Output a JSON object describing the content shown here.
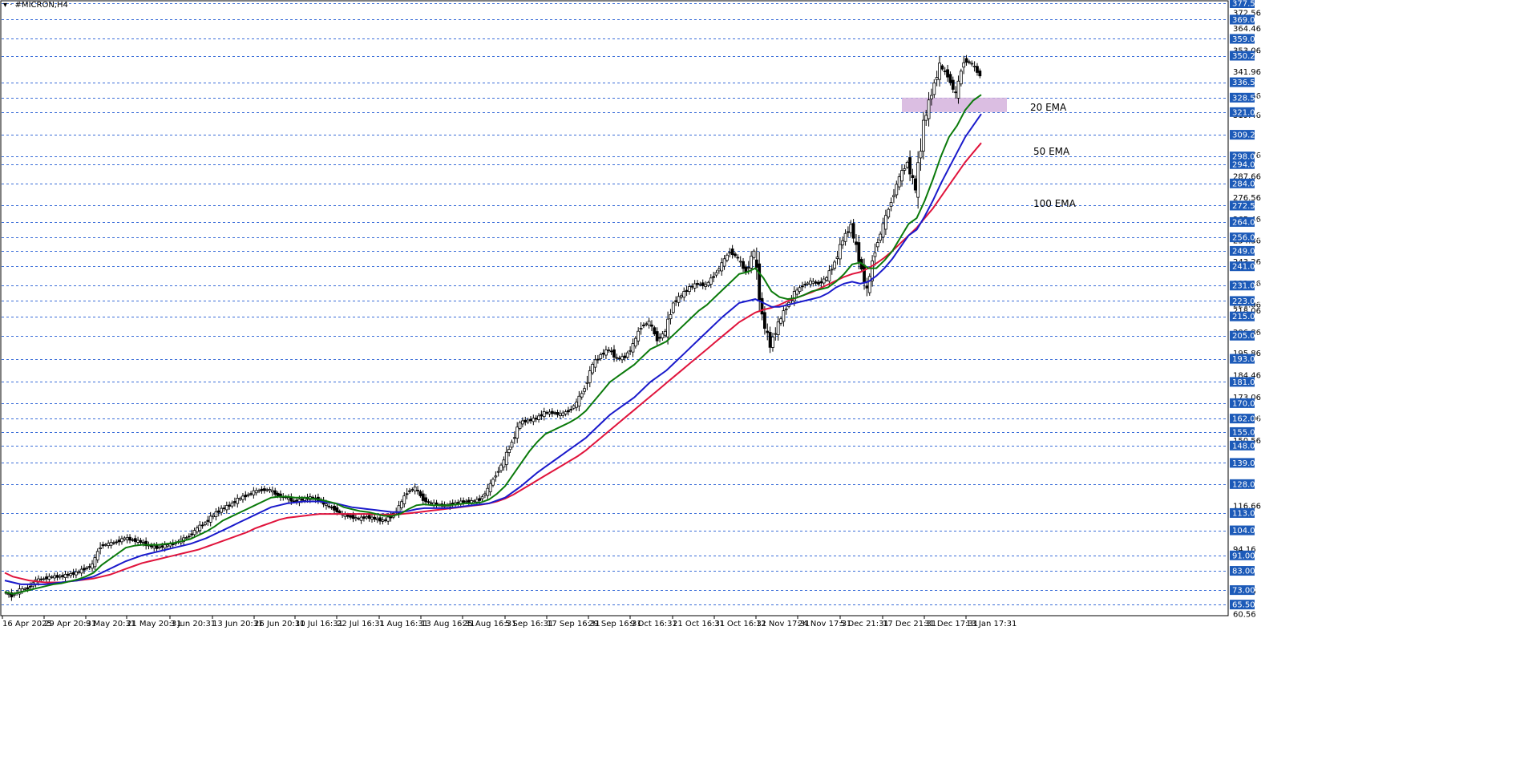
{
  "window": {
    "title": "▾ · #MICRON,H4"
  },
  "colors": {
    "ema20": "#0b7a0b",
    "ema50": "#1a1acb",
    "ema100": "#e0143c",
    "tag_bg": "#1c5ab8",
    "grid": "#3a6dd8",
    "zone": "#d5b3dd",
    "candle": "#000000"
  },
  "chart_data": {
    "type": "line",
    "symbol": "#MICRON",
    "timeframe": "H4",
    "ylim": [
      60.56,
      377.5
    ],
    "x_ticks": [
      "16 Apr 2025",
      "29 Apr 20:31",
      "9 May 20:31",
      "21 May 20:31",
      "3 Jun 20:31",
      "13 Jun 20:31",
      "26 Jun 20:31",
      "10 Jul 16:31",
      "22 Jul 16:31",
      "1 Aug 16:31",
      "13 Aug 16:31",
      "25 Aug 16:31",
      "5 Sep 16:31",
      "17 Sep 16:31",
      "29 Sep 16:31",
      "9 Oct 16:31",
      "21 Oct 16:31",
      "31 Oct 16:31",
      "12 Nov 17:31",
      "24 Nov 17:31",
      "5 Dec 21:31",
      "17 Dec 21:31",
      "31 Dec 17:31",
      "13 Jan 17:31"
    ],
    "y_ticks": [
      "372.56",
      "364.46",
      "353.06",
      "341.96",
      "329.56",
      "319.46",
      "298.76",
      "287.66",
      "276.56",
      "265.46",
      "254.36",
      "243.26",
      "232.16",
      "221.06",
      "218.06",
      "206.86",
      "195.86",
      "184.46",
      "173.06",
      "161.96",
      "150.56",
      "116.66",
      "94.16",
      "72.46",
      "60.56"
    ],
    "level_tags": [
      "377.50",
      "369.00",
      "359.00",
      "350.25",
      "336.50",
      "328.50",
      "321.00",
      "309.25",
      "298.00",
      "294.00",
      "284.00",
      "272.50",
      "264.00",
      "256.00",
      "249.00",
      "241.00",
      "231.00",
      "223.00",
      "215.00",
      "205.00",
      "193.00",
      "181.00",
      "170.00",
      "162.00",
      "155.00",
      "148.00",
      "139.00",
      "128.00",
      "113.00",
      "104.00",
      "91.00",
      "83.00",
      "73.00",
      "65.50"
    ],
    "levels": [
      377.5,
      369,
      359,
      350.25,
      336.5,
      328.5,
      321,
      309.25,
      298,
      294,
      284,
      272.5,
      264,
      256,
      249,
      241,
      231,
      223,
      215,
      205,
      193,
      181,
      170,
      162,
      155,
      148,
      139,
      128,
      113,
      104,
      91,
      83,
      73,
      65.5
    ],
    "zone": {
      "from": 321,
      "to": 328.5
    },
    "close": [
      72,
      70,
      73,
      74,
      78,
      79,
      80,
      80,
      81,
      82,
      84,
      86,
      96,
      97,
      98,
      100,
      99,
      98,
      96,
      95,
      96,
      97,
      99,
      101,
      105,
      108,
      112,
      115,
      117,
      120,
      122,
      124,
      125,
      125,
      122,
      121,
      119,
      120,
      121,
      120,
      117,
      115,
      112,
      111,
      110,
      111,
      110,
      109,
      111,
      116,
      124,
      126,
      120,
      118,
      117,
      117,
      118,
      119,
      119,
      120,
      125,
      133,
      140,
      150,
      160,
      161,
      162,
      165,
      165,
      164,
      166,
      170,
      178,
      190,
      195,
      198,
      193,
      194,
      200,
      210,
      212,
      203,
      207,
      222,
      226,
      230,
      232,
      231,
      236,
      242,
      249,
      245,
      238,
      249,
      215,
      200,
      211,
      220,
      227,
      231,
      233,
      232,
      235,
      243,
      255,
      262,
      245,
      228,
      250,
      262,
      275,
      287,
      295,
      281,
      315,
      331,
      345,
      340,
      330,
      348,
      346,
      340
    ],
    "ema20": [
      72,
      71,
      72,
      73,
      74,
      75,
      76,
      76.5,
      77.5,
      78.5,
      80,
      82,
      86,
      89,
      92,
      95,
      96,
      96.5,
      96.5,
      96.5,
      97,
      97.5,
      98.5,
      99.5,
      101.5,
      103.5,
      106,
      109,
      111,
      113,
      115,
      117,
      119,
      121,
      121.5,
      121.5,
      121,
      121,
      120.5,
      120,
      119,
      118,
      116,
      115,
      114,
      113.5,
      112.5,
      111.5,
      111.5,
      112.5,
      115,
      117,
      117.5,
      117,
      117,
      117,
      117.5,
      118,
      118,
      118.5,
      120,
      123,
      127,
      133,
      139,
      145,
      150,
      154,
      156,
      158,
      160,
      162.5,
      166,
      171,
      176,
      181,
      184,
      187,
      190,
      194,
      198,
      200,
      202,
      206,
      210,
      214,
      218,
      221,
      225,
      229,
      233,
      237,
      238,
      240,
      235,
      228,
      225,
      224,
      224.5,
      226,
      228,
      229,
      230,
      233,
      237,
      242,
      243,
      240,
      240,
      244,
      249,
      256,
      263,
      266,
      275,
      286,
      298,
      308,
      314,
      322,
      327,
      330
    ],
    "ema50": [
      78,
      77,
      76,
      76,
      76,
      76,
      76.5,
      77,
      77.5,
      78,
      79,
      80,
      82,
      84,
      86,
      88,
      89.5,
      91,
      92,
      93,
      94,
      95,
      96,
      97,
      98.5,
      100,
      102,
      104,
      106,
      108,
      110,
      112,
      114,
      116,
      117,
      118,
      118.5,
      119,
      119,
      119,
      118.5,
      118,
      117,
      116,
      115.5,
      115,
      114.5,
      114,
      113.5,
      113.5,
      114,
      115,
      115.5,
      115.5,
      115.5,
      115.5,
      116,
      116.5,
      117,
      117.5,
      118,
      119.5,
      121,
      124,
      127,
      130.5,
      134,
      137,
      140,
      143,
      146,
      149,
      152,
      156,
      160,
      164,
      167,
      170,
      173,
      177,
      181,
      184,
      187,
      191,
      195,
      199,
      203,
      207,
      211,
      215,
      218.5,
      222,
      223,
      224,
      222,
      220,
      220,
      221,
      222,
      223,
      224,
      225,
      227,
      230,
      232,
      233,
      232,
      233,
      236,
      240,
      245,
      251,
      257,
      260,
      267,
      275,
      284,
      292,
      300,
      308,
      314,
      320
    ],
    "ema100": [
      82,
      80,
      79,
      78,
      77.5,
      77,
      77,
      77,
      77.5,
      78,
      78.5,
      79,
      80,
      81,
      82.5,
      84,
      85.5,
      87,
      88,
      89,
      90,
      91,
      92,
      93,
      94,
      95.5,
      97,
      98.5,
      100,
      101.5,
      103,
      105,
      106.5,
      108,
      109.5,
      110.5,
      111,
      111.5,
      112,
      112.5,
      112.5,
      112.5,
      112.5,
      112.5,
      112.5,
      112.5,
      112.3,
      112.2,
      112.2,
      112.4,
      112.8,
      113.3,
      113.8,
      114.3,
      114.8,
      115.3,
      115.8,
      116.3,
      116.8,
      117.3,
      118,
      119,
      120.5,
      122.5,
      125,
      127.5,
      130,
      132.5,
      135,
      137.5,
      140,
      142.5,
      145.5,
      149,
      152.5,
      156,
      159.5,
      163,
      166.5,
      170,
      173.5,
      177,
      180.5,
      184,
      187.5,
      191,
      194.5,
      198,
      201.5,
      205,
      208.5,
      212,
      214.5,
      217,
      218.5,
      219.5,
      221,
      223,
      224.5,
      226,
      227.5,
      229.5,
      231.5,
      233.5,
      235.5,
      237,
      238,
      240,
      242.5,
      245.5,
      249,
      253,
      257,
      261,
      266,
      271,
      277,
      283,
      289,
      295,
      300,
      305
    ]
  },
  "annotations": {
    "ema20": "20 EMA",
    "ema50": "50 EMA",
    "ema100": "100 EMA"
  }
}
